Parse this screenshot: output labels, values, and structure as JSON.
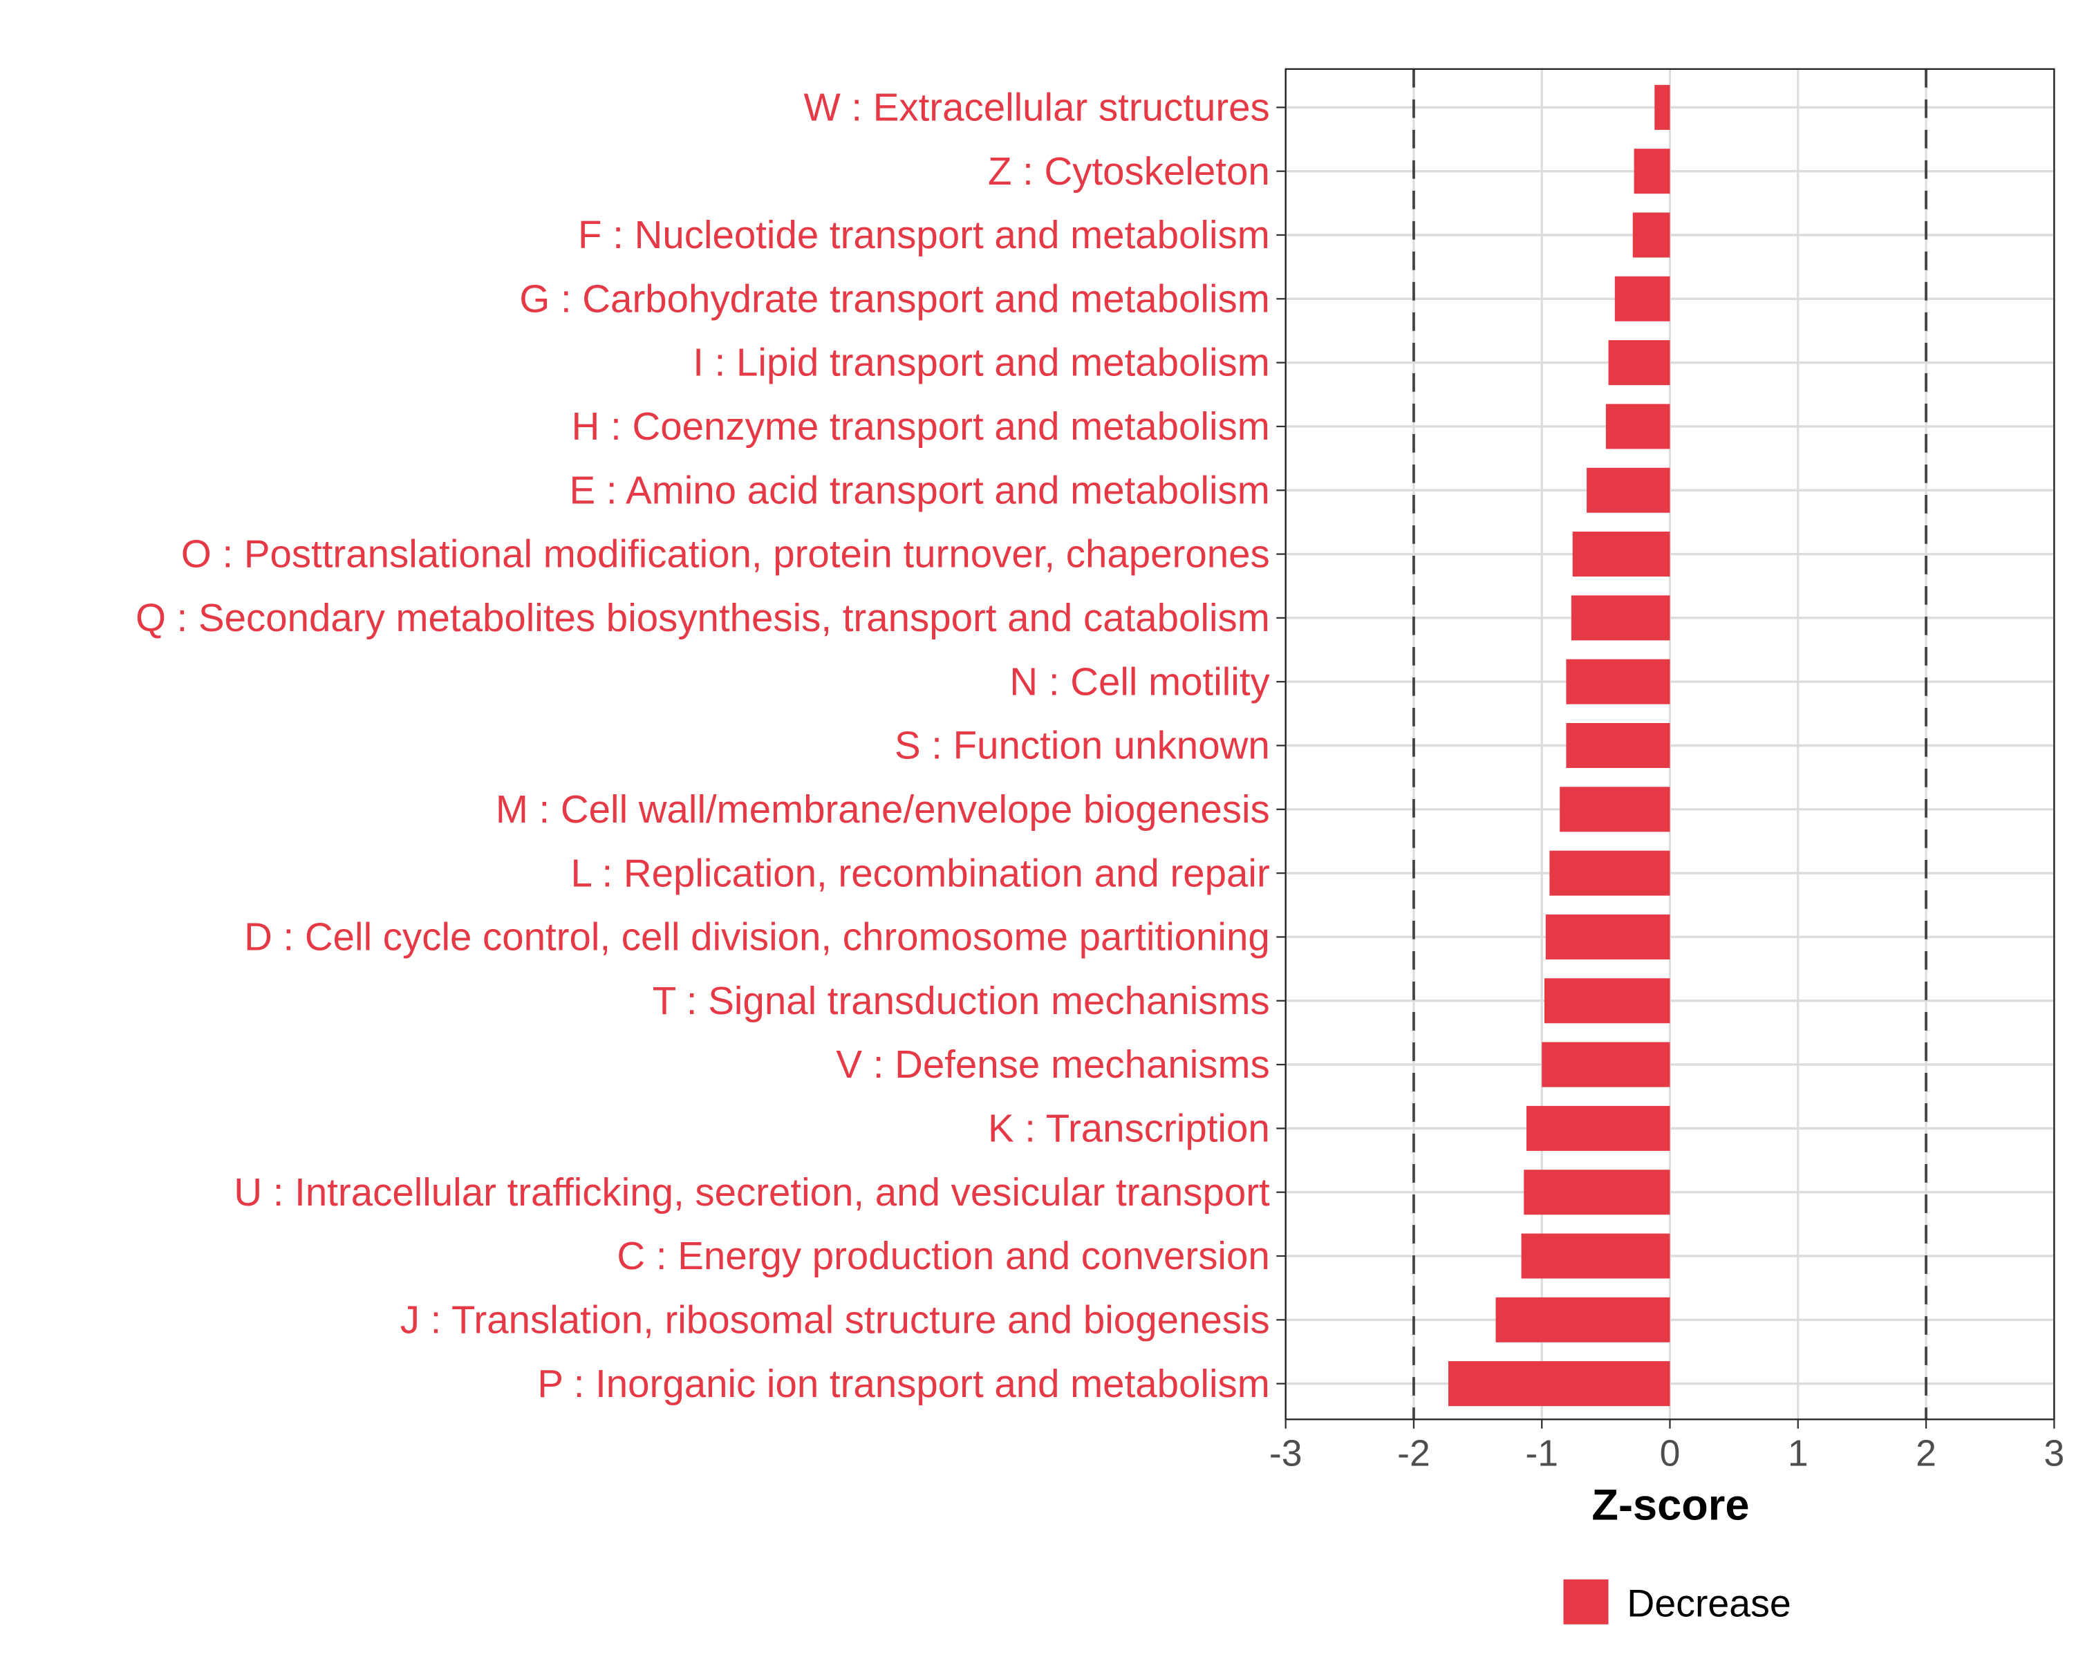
{
  "chart_data": {
    "type": "bar",
    "orientation": "horizontal",
    "title": "",
    "xlabel": "Z-score",
    "ylabel": "",
    "xlim": [
      -3,
      3
    ],
    "x_ticks": [
      "-3",
      "-2",
      "-1",
      "0",
      "1",
      "2",
      "3"
    ],
    "x_tick_values": [
      -3,
      -2,
      -1,
      0,
      1,
      2,
      3
    ],
    "reference_lines": [
      -2,
      2
    ],
    "grid": true,
    "legend": {
      "position": "bottom",
      "entries": [
        {
          "label": "Decrease",
          "color": "#E63946"
        }
      ]
    },
    "bar_color": "#E63946",
    "categories": [
      "W : Extracellular structures",
      "Z : Cytoskeleton",
      "F : Nucleotide transport and metabolism",
      "G : Carbohydrate transport and metabolism",
      "I : Lipid transport and metabolism",
      "H : Coenzyme transport and metabolism",
      "E : Amino acid transport and metabolism",
      "O : Posttranslational modification, protein turnover, chaperones",
      "Q : Secondary metabolites biosynthesis, transport and catabolism",
      "N : Cell motility",
      "S : Function unknown",
      "M : Cell wall/membrane/envelope biogenesis",
      "L : Replication, recombination and repair",
      "D : Cell cycle control, cell division, chromosome partitioning",
      "T : Signal transduction mechanisms",
      "V : Defense mechanisms",
      "K : Transcription",
      "U : Intracellular trafficking, secretion, and vesicular transport",
      "C : Energy production and conversion",
      "J : Translation, ribosomal structure and biogenesis",
      "P : Inorganic ion transport and metabolism"
    ],
    "values": [
      -0.12,
      -0.28,
      -0.29,
      -0.43,
      -0.48,
      -0.5,
      -0.65,
      -0.76,
      -0.77,
      -0.81,
      -0.81,
      -0.86,
      -0.94,
      -0.97,
      -0.98,
      -1.0,
      -1.12,
      -1.14,
      -1.16,
      -1.36,
      -1.73
    ]
  }
}
